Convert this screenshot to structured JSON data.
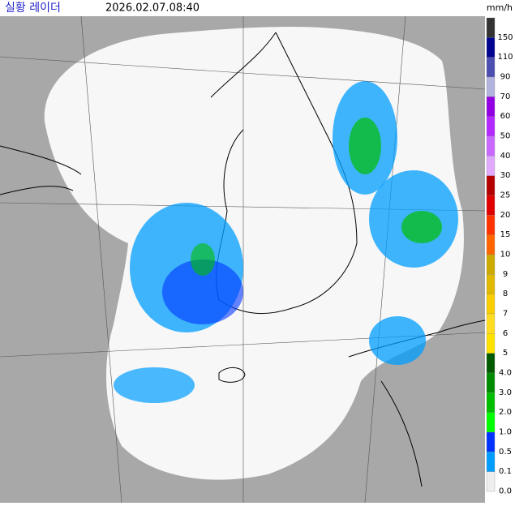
{
  "header": {
    "title": "실황 레이더",
    "time": "2026.02.07.08:40",
    "unit": "mm/h"
  },
  "legend": {
    "items": [
      {
        "label": "150",
        "color": "#333333"
      },
      {
        "label": "110",
        "color": "#000390"
      },
      {
        "label": "90",
        "color": "#4c4eb1"
      },
      {
        "label": "70",
        "color": "#b3b4de"
      },
      {
        "label": "60",
        "color": "#9300e4"
      },
      {
        "label": "50",
        "color": "#b329ff"
      },
      {
        "label": "40",
        "color": "#c969ff"
      },
      {
        "label": "30",
        "color": "#e0a9ff"
      },
      {
        "label": "25",
        "color": "#b40000"
      },
      {
        "label": "20",
        "color": "#e00000"
      },
      {
        "label": "15",
        "color": "#ff3300"
      },
      {
        "label": "10",
        "color": "#ff6600"
      },
      {
        "label": "9",
        "color": "#ccaa00"
      },
      {
        "label": "8",
        "color": "#e0b900"
      },
      {
        "label": "7",
        "color": "#f9cd00"
      },
      {
        "label": "6",
        "color": "#ffdc1f"
      },
      {
        "label": "5",
        "color": "#ffe100"
      },
      {
        "label": "4.0",
        "color": "#005a00"
      },
      {
        "label": "3.0",
        "color": "#008c00"
      },
      {
        "label": "2.0",
        "color": "#00be00"
      },
      {
        "label": "1.0",
        "color": "#00ff00"
      },
      {
        "label": "0.5",
        "color": "#0033ff"
      },
      {
        "label": "0.1",
        "color": "#009dff"
      },
      {
        "label": "0.0",
        "color": "#eeeeee"
      }
    ]
  }
}
